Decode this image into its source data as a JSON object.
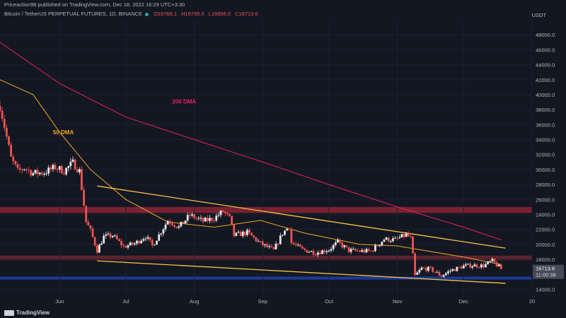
{
  "header": {
    "published_text": "Priceaction98 published on TradingView.com, Dec 18, 2022 16:29 UTC+3:30",
    "symbol": "Bitcoin / TetherUS PERPETUAL FUTURES, 1D, BINANCE",
    "ohlc": {
      "open": "O16768.1",
      "high": "H16795.0",
      "low": "L16656.0",
      "close": "C16713.6"
    },
    "currency": "USDT"
  },
  "footer": {
    "brand": "TradingView"
  },
  "chart_data": {
    "type": "candlestick",
    "y_axis": {
      "range": [
        13000,
        50000
      ],
      "ticks": [
        14000,
        16000,
        18000,
        20000,
        22000,
        24000,
        26000,
        28000,
        30000,
        32000,
        34000,
        36000,
        38000,
        40000,
        42000,
        44000,
        46000,
        48000
      ],
      "tick_labels": [
        "14000.0",
        "16000.0",
        "18000.0",
        "20000.0",
        "22000.0",
        "24000.0",
        "26000.0",
        "28000.0",
        "30000.0",
        "32000.0",
        "34000.0",
        "36000.0",
        "38000.0",
        "40000.0",
        "42000.0",
        "44000.0",
        "46000.0",
        "48000.0"
      ]
    },
    "x_axis": {
      "range": [
        "2022-05-05",
        "2023-01-01"
      ],
      "ticks": [
        "2022-06-01",
        "2022-07-01",
        "2022-08-01",
        "2022-09-01",
        "2022-10-01",
        "2022-11-01",
        "2022-12-01",
        "2023-01-01"
      ],
      "tick_labels": [
        "Jun",
        "Jul",
        "Aug",
        "Sep",
        "Oct",
        "Nov",
        "Dec",
        "20"
      ]
    },
    "price_path": [
      [
        "2022-05-05",
        38500
      ],
      [
        "2022-05-07",
        35800
      ],
      [
        "2022-05-10",
        31500
      ],
      [
        "2022-05-13",
        29800
      ],
      [
        "2022-05-16",
        30200
      ],
      [
        "2022-05-20",
        29500
      ],
      [
        "2022-05-25",
        29600
      ],
      [
        "2022-05-30",
        30300
      ],
      [
        "2022-06-03",
        29800
      ],
      [
        "2022-06-07",
        30900
      ],
      [
        "2022-06-10",
        29800
      ],
      [
        "2022-06-13",
        23000
      ],
      [
        "2022-06-15",
        21800
      ],
      [
        "2022-06-18",
        19200
      ],
      [
        "2022-06-21",
        21000
      ],
      [
        "2022-06-25",
        21200
      ],
      [
        "2022-06-30",
        19700
      ],
      [
        "2022-07-05",
        20100
      ],
      [
        "2022-07-10",
        21100
      ],
      [
        "2022-07-13",
        19800
      ],
      [
        "2022-07-20",
        23200
      ],
      [
        "2022-07-25",
        22300
      ],
      [
        "2022-07-30",
        23900
      ],
      [
        "2022-08-05",
        23100
      ],
      [
        "2022-08-10",
        23500
      ],
      [
        "2022-08-14",
        24400
      ],
      [
        "2022-08-17",
        23500
      ],
      [
        "2022-08-19",
        21200
      ],
      [
        "2022-08-25",
        21600
      ],
      [
        "2022-08-31",
        20100
      ],
      [
        "2022-09-06",
        19200
      ],
      [
        "2022-09-10",
        21500
      ],
      [
        "2022-09-13",
        22400
      ],
      [
        "2022-09-14",
        20200
      ],
      [
        "2022-09-19",
        19300
      ],
      [
        "2022-09-25",
        18900
      ],
      [
        "2022-10-01",
        19300
      ],
      [
        "2022-10-05",
        20300
      ],
      [
        "2022-10-10",
        19200
      ],
      [
        "2022-10-15",
        19100
      ],
      [
        "2022-10-20",
        19100
      ],
      [
        "2022-10-26",
        20700
      ],
      [
        "2022-10-31",
        20600
      ],
      [
        "2022-11-05",
        21300
      ],
      [
        "2022-11-07",
        20800
      ],
      [
        "2022-11-08",
        18500
      ],
      [
        "2022-11-09",
        15800
      ],
      [
        "2022-11-12",
        16800
      ],
      [
        "2022-11-16",
        16700
      ],
      [
        "2022-11-21",
        15800
      ],
      [
        "2022-11-25",
        16500
      ],
      [
        "2022-12-01",
        17100
      ],
      [
        "2022-12-05",
        17200
      ],
      [
        "2022-12-10",
        17150
      ],
      [
        "2022-12-14",
        17800
      ],
      [
        "2022-12-18",
        16713.6
      ]
    ],
    "moving_averages": [
      {
        "name": "200 DMA",
        "color": "#e91e63",
        "points": [
          [
            "2022-05-05",
            47000
          ],
          [
            "2022-06-01",
            41500
          ],
          [
            "2022-07-01",
            37000
          ],
          [
            "2022-08-01",
            34000
          ],
          [
            "2022-09-01",
            31000
          ],
          [
            "2022-10-01",
            28000
          ],
          [
            "2022-11-01",
            25000
          ],
          [
            "2022-12-01",
            22300
          ],
          [
            "2022-12-18",
            20600
          ]
        ]
      },
      {
        "name": "50 DMA",
        "color": "#f5a623",
        "points": [
          [
            "2022-05-05",
            42000
          ],
          [
            "2022-05-20",
            40000
          ],
          [
            "2022-06-01",
            35000
          ],
          [
            "2022-06-15",
            30000
          ],
          [
            "2022-07-01",
            26000
          ],
          [
            "2022-07-20",
            23000
          ],
          [
            "2022-08-10",
            22300
          ],
          [
            "2022-08-31",
            23200
          ],
          [
            "2022-09-20",
            21500
          ],
          [
            "2022-10-15",
            20000
          ],
          [
            "2022-11-01",
            19800
          ],
          [
            "2022-11-15",
            19100
          ],
          [
            "2022-12-01",
            18300
          ],
          [
            "2022-12-18",
            17300
          ]
        ]
      }
    ],
    "trend_lines": [
      {
        "name": "upper-channel",
        "color": "#f7c244",
        "points": [
          [
            "2022-06-18",
            27800
          ],
          [
            "2022-12-20",
            19500
          ]
        ]
      },
      {
        "name": "lower-channel",
        "color": "#f7c244",
        "points": [
          [
            "2022-06-18",
            17800
          ],
          [
            "2022-12-20",
            14800
          ]
        ]
      }
    ],
    "zones": [
      {
        "name": "resistance-zone-24500",
        "from": 24200,
        "to": 25000,
        "color": "#8b2534"
      },
      {
        "name": "resistance-zone-18000",
        "from": 17900,
        "to": 18500,
        "color": "#6e2530"
      },
      {
        "name": "support-zone-15500",
        "from": 15300,
        "to": 15700,
        "color": "#1e3fa8"
      }
    ],
    "annotations": [
      {
        "text": "200 DMA",
        "x": "2022-07-22",
        "y": 38800,
        "color": "#e91e63"
      },
      {
        "text": "50 DMA",
        "x": "2022-05-29",
        "y": 34700,
        "color": "#f5a623"
      }
    ],
    "last_price": {
      "value": 16713.6,
      "label": "16713.6",
      "countdown": "11:00:38"
    }
  }
}
